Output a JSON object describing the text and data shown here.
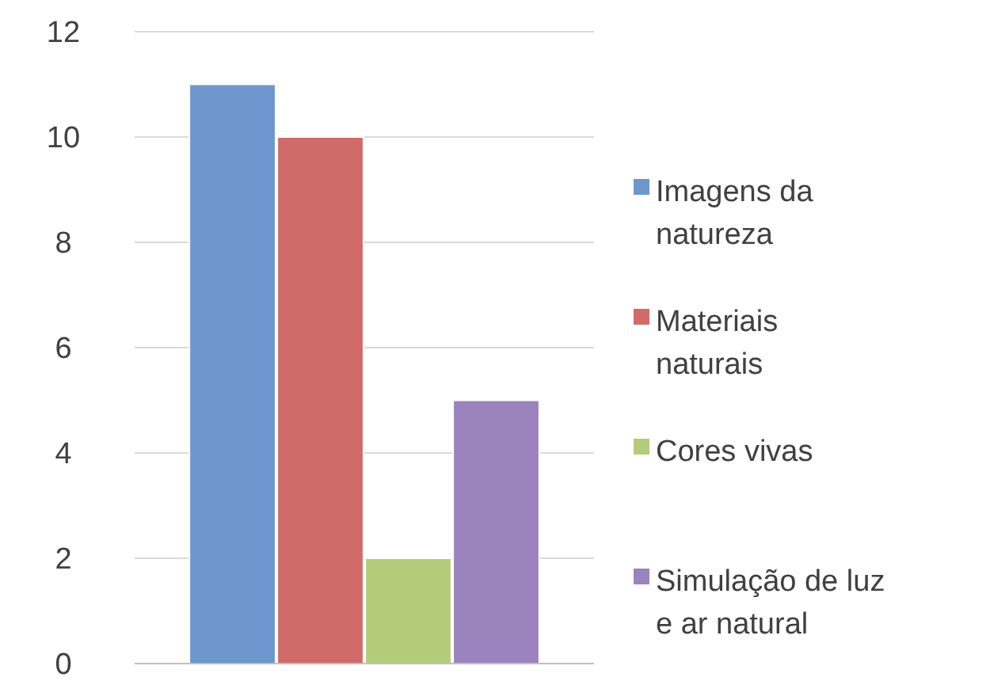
{
  "chart_data": {
    "type": "bar",
    "categories": [
      null
    ],
    "series": [
      {
        "name": "Imagens da natureza",
        "color": "#6d96cc",
        "values": [
          11
        ]
      },
      {
        "name": "Materiais naturais",
        "color": "#d06b69",
        "values": [
          10
        ]
      },
      {
        "name": "Cores vivas",
        "color": "#b4cc79",
        "values": [
          2
        ]
      },
      {
        "name": "Simulação de luz e ar natural",
        "color": "#9b83bd",
        "values": [
          5
        ]
      }
    ],
    "ylim": [
      0,
      12
    ],
    "yticks": [
      0,
      2,
      4,
      6,
      8,
      10,
      12
    ],
    "grid": "y",
    "legend": "right"
  }
}
